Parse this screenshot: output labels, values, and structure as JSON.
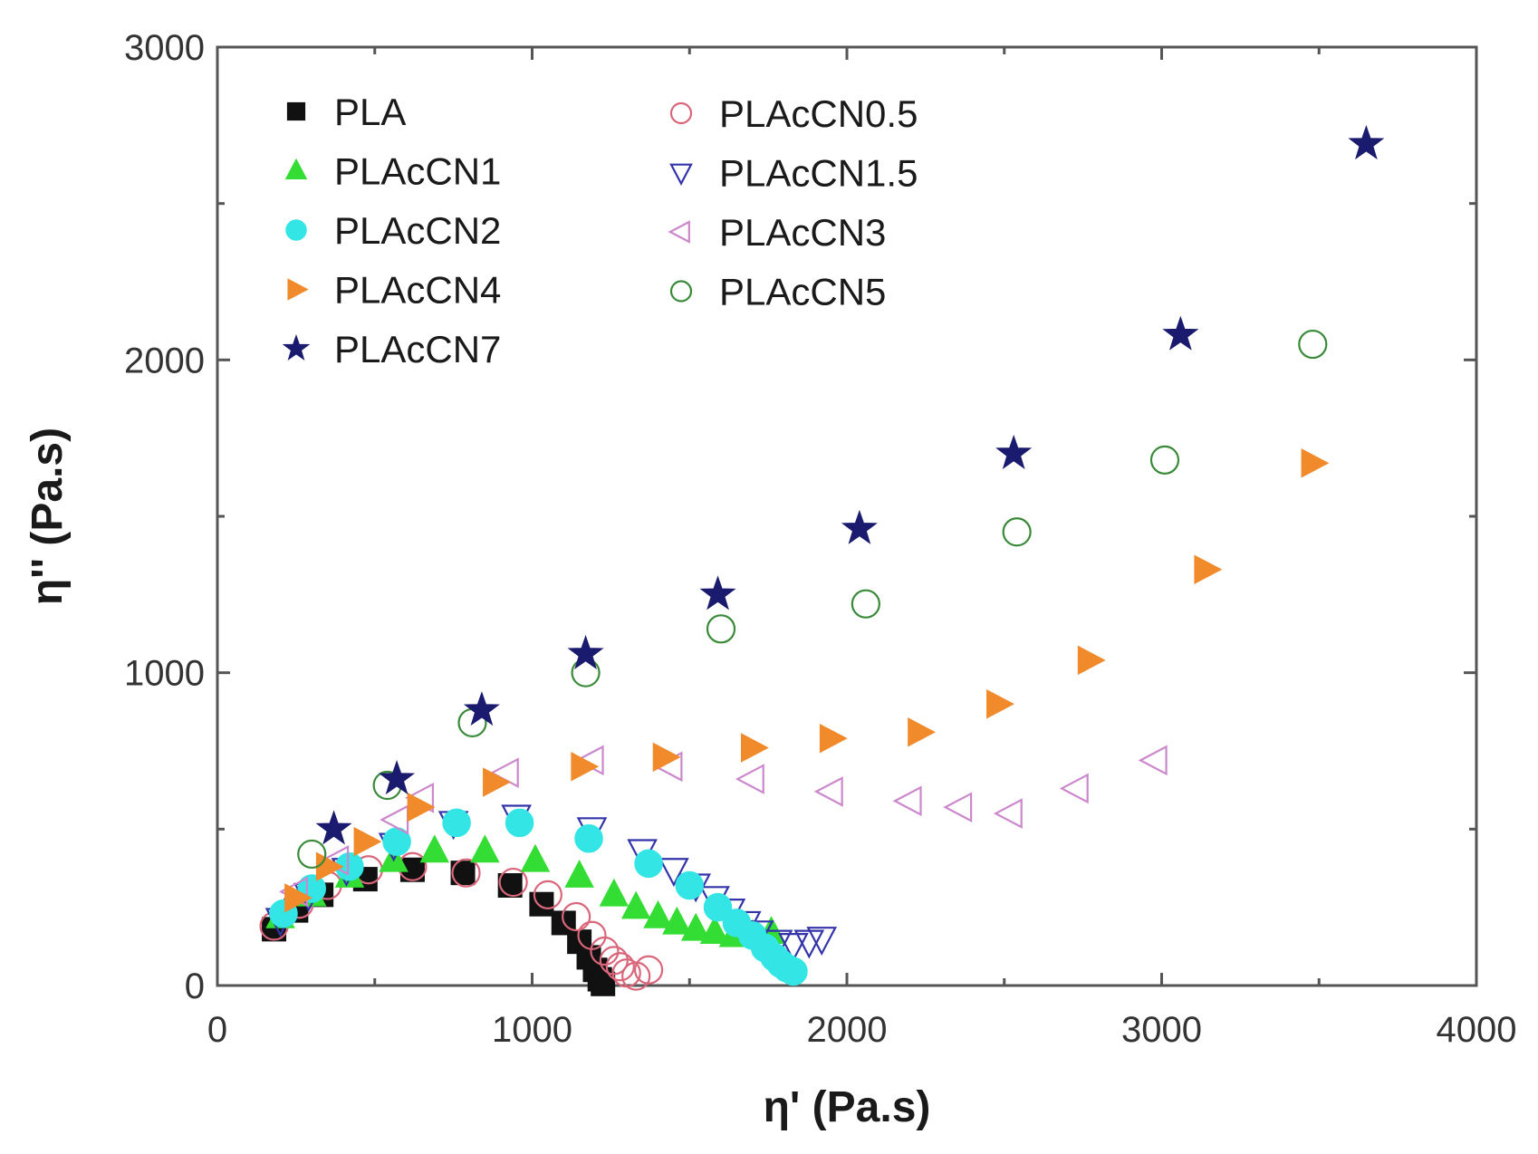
{
  "chart_data": {
    "type": "scatter",
    "title": "",
    "xlabel": "η' (Pa.s)",
    "ylabel": "η'' (Pa.s)",
    "xlim": [
      0,
      4000
    ],
    "ylim": [
      0,
      3000
    ],
    "xticks": [
      0,
      1000,
      2000,
      3000,
      4000
    ],
    "yticks": [
      0,
      1000,
      2000,
      3000
    ],
    "x_tick_labels": [
      "0",
      "1000",
      "2000",
      "3000",
      "4000"
    ],
    "y_tick_labels": [
      "0",
      "1000",
      "2000",
      "3000"
    ],
    "grid": false,
    "legend_position": "top-left",
    "series": [
      {
        "name": "PLA",
        "marker": "square",
        "filled": true,
        "color": "#111111",
        "x": [
          180,
          250,
          330,
          470,
          620,
          780,
          930,
          1030,
          1100,
          1150,
          1180,
          1200,
          1215,
          1225
        ],
        "y": [
          180,
          240,
          290,
          340,
          370,
          360,
          320,
          260,
          200,
          140,
          90,
          50,
          20,
          5
        ]
      },
      {
        "name": "PLAcCN0.5",
        "marker": "circle",
        "filled": false,
        "color": "#d9667a",
        "x": [
          180,
          260,
          350,
          480,
          620,
          790,
          940,
          1050,
          1140,
          1190,
          1230,
          1260,
          1280,
          1300,
          1330,
          1370
        ],
        "y": [
          190,
          260,
          320,
          370,
          380,
          360,
          330,
          290,
          220,
          160,
          110,
          80,
          60,
          40,
          30,
          50
        ]
      },
      {
        "name": "PLAcCN1",
        "marker": "triangle-up",
        "filled": true,
        "color": "#33dd33",
        "x": [
          200,
          300,
          420,
          560,
          690,
          850,
          1010,
          1150,
          1260,
          1330,
          1400,
          1460,
          1520,
          1580,
          1640,
          1700,
          1760
        ],
        "y": [
          220,
          290,
          350,
          400,
          430,
          430,
          400,
          350,
          290,
          250,
          220,
          200,
          180,
          170,
          160,
          160,
          170
        ]
      },
      {
        "name": "PLAcCN1.5",
        "marker": "triangle-down",
        "filled": false,
        "color": "#3333aa",
        "x": [
          200,
          290,
          410,
          560,
          750,
          950,
          1190,
          1350,
          1450,
          1520,
          1580,
          1630,
          1680,
          1720,
          1780,
          1830,
          1880,
          1920
        ],
        "y": [
          210,
          290,
          370,
          450,
          520,
          540,
          500,
          430,
          370,
          320,
          280,
          240,
          200,
          170,
          140,
          130,
          140,
          150
        ]
      },
      {
        "name": "PLAcCN2",
        "marker": "circle",
        "filled": true,
        "color": "#33e5e5",
        "x": [
          210,
          300,
          420,
          570,
          760,
          960,
          1180,
          1370,
          1500,
          1590,
          1650,
          1700,
          1740,
          1770,
          1790,
          1810,
          1830
        ],
        "y": [
          230,
          310,
          380,
          460,
          520,
          520,
          470,
          390,
          320,
          250,
          200,
          160,
          120,
          90,
          70,
          55,
          45
        ]
      },
      {
        "name": "PLAcCN3",
        "marker": "triangle-left",
        "filled": false,
        "color": "#cc88cc",
        "x": [
          250,
          380,
          570,
          650,
          920,
          1190,
          1440,
          1700,
          1950,
          2200,
          2360,
          2520,
          2730,
          2980
        ],
        "y": [
          300,
          400,
          530,
          600,
          680,
          720,
          700,
          660,
          620,
          590,
          570,
          550,
          630,
          720
        ]
      },
      {
        "name": "PLAcCN4",
        "marker": "triangle-right",
        "filled": true,
        "color": "#f08a2a",
        "x": [
          250,
          350,
          470,
          640,
          880,
          1160,
          1420,
          1700,
          1950,
          2230,
          2480,
          2770,
          3140,
          3480
        ],
        "y": [
          280,
          380,
          460,
          570,
          650,
          700,
          730,
          760,
          790,
          810,
          900,
          1040,
          1330,
          1670
        ]
      },
      {
        "name": "PLAcCN5",
        "marker": "circle",
        "filled": false,
        "color": "#3a8a3a",
        "x": [
          300,
          540,
          810,
          1170,
          1600,
          2060,
          2540,
          3010,
          3480
        ],
        "y": [
          420,
          640,
          840,
          1000,
          1140,
          1220,
          1450,
          1680,
          2050
        ]
      },
      {
        "name": "PLAcCN7",
        "marker": "star",
        "filled": true,
        "color": "#1a1a6e",
        "x": [
          370,
          570,
          840,
          1170,
          1590,
          2040,
          2530,
          3060,
          3650
        ],
        "y": [
          500,
          660,
          880,
          1060,
          1250,
          1460,
          1700,
          2080,
          2690
        ]
      }
    ]
  }
}
